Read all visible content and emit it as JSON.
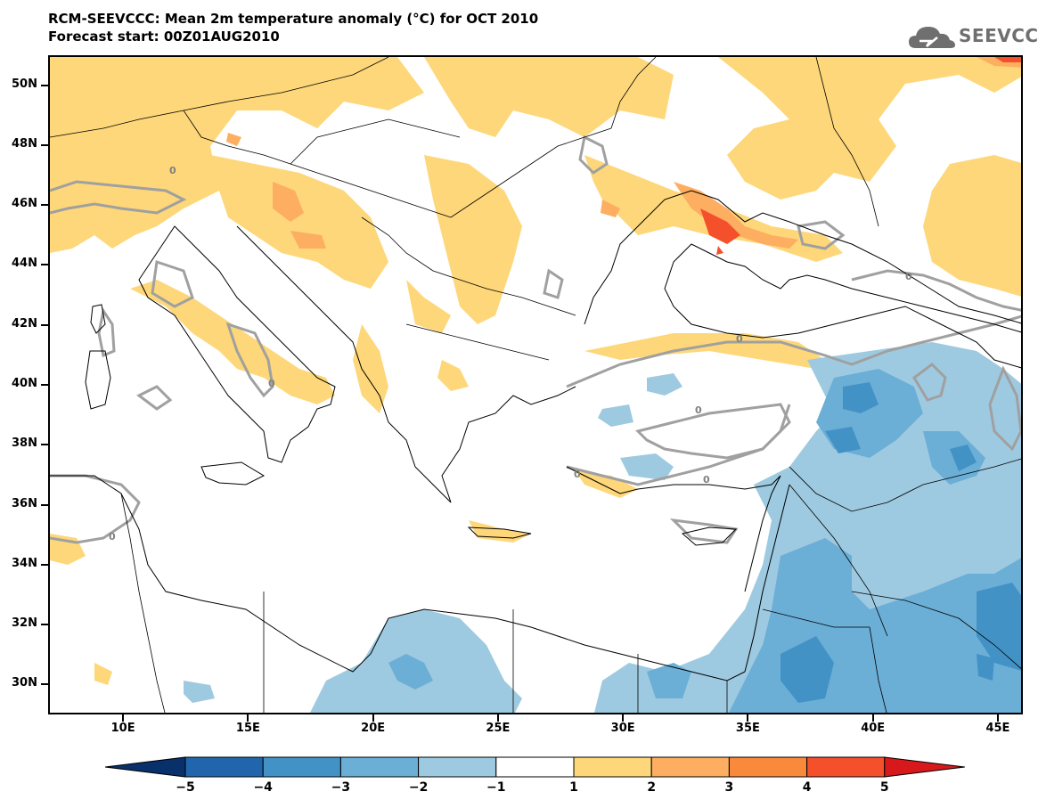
{
  "header": {
    "title": "RCM-SEEVCCC: Mean 2m temperature anomaly (°C) for OCT 2010",
    "subtitle": "Forecast start: 00Z01AUG2010"
  },
  "logo": {
    "text": "SEEVCCC",
    "icon": "cloud-logo-icon"
  },
  "axes": {
    "lat_labels": [
      "50N",
      "48N",
      "46N",
      "44N",
      "42N",
      "40N",
      "38N",
      "36N",
      "34N",
      "32N",
      "30N"
    ],
    "lon_labels": [
      "10E",
      "15E",
      "20E",
      "25E",
      "30E",
      "35E",
      "40E",
      "45E"
    ],
    "lat_values": [
      50,
      48,
      46,
      44,
      42,
      40,
      38,
      36,
      34,
      32,
      30
    ],
    "lon_values": [
      10,
      15,
      20,
      25,
      30,
      35,
      40,
      45
    ],
    "lat_range": [
      29,
      51
    ],
    "lon_range": [
      7,
      46
    ]
  },
  "contour_labels": [
    "0",
    "0",
    "0",
    "0",
    "0",
    "0",
    "0",
    "0",
    "0"
  ],
  "colorbar": {
    "labels": [
      "−5",
      "−4",
      "−3",
      "−2",
      "−1",
      "1",
      "2",
      "3",
      "4",
      "5"
    ],
    "colors": [
      "#08306b",
      "#2166ac",
      "#4292c6",
      "#6baed6",
      "#9ecae1",
      "#ffffff",
      "#fdd779",
      "#fdae61",
      "#f98a3c",
      "#f4502b",
      "#d7191c"
    ]
  },
  "colors": {
    "warm1": "#fdd779",
    "warm2": "#fdae61",
    "warm3": "#f98a3c",
    "warm4": "#e8502b",
    "cool1": "#9ecae1",
    "cool2": "#6baed6",
    "cool3": "#4292c6",
    "zero_contour": "#a0a0a0",
    "coast": "#000000"
  }
}
